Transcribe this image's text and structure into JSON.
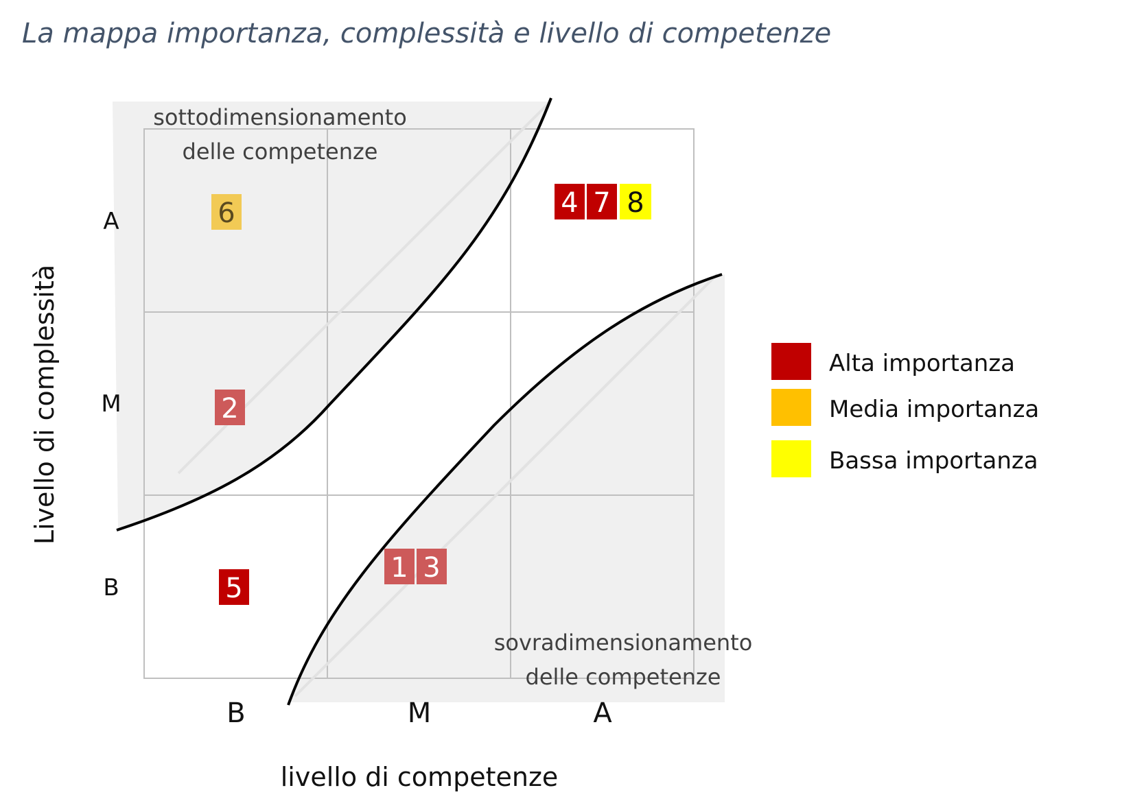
{
  "title": "La mappa importanza, complessità e livello di competenze",
  "y_axis": {
    "label": "Livello di complessità",
    "ticks": [
      "A",
      "M",
      "B"
    ]
  },
  "x_axis": {
    "label": "livello di competenze",
    "ticks": [
      "B",
      "M",
      "A"
    ]
  },
  "zones": {
    "upper": {
      "line1": "sottodimensionamento",
      "line2": "delle competenze"
    },
    "lower": {
      "line1": "sovradimensionamento",
      "line2": "delle competenze"
    }
  },
  "items": [
    {
      "label": "6",
      "level": "media",
      "complexity": "A",
      "competence": "B"
    },
    {
      "label": "4",
      "level": "alta",
      "complexity": "A",
      "competence": "A"
    },
    {
      "label": "7",
      "level": "alta",
      "complexity": "A",
      "competence": "A"
    },
    {
      "label": "8",
      "level": "bassa",
      "complexity": "A",
      "competence": "A"
    },
    {
      "label": "2",
      "level": "alta",
      "complexity": "M",
      "competence": "B"
    },
    {
      "label": "5",
      "level": "alta",
      "complexity": "B",
      "competence": "B"
    },
    {
      "label": "1",
      "level": "alta",
      "complexity": "B",
      "competence": "M"
    },
    {
      "label": "3",
      "level": "alta",
      "complexity": "B",
      "competence": "M"
    }
  ],
  "legend": [
    {
      "key": "alta",
      "label": "Alta importanza",
      "color": "#c00000"
    },
    {
      "key": "media",
      "label": "Media importanza",
      "color": "#ffc000"
    },
    {
      "key": "bassa",
      "label": "Bassa importanza",
      "color": "#ffff00"
    }
  ],
  "colors": {
    "title": "#44546a",
    "zone_fill": "#f0f0f0",
    "grid": "#bfbfbf",
    "curve": "#000000",
    "box_alta": "#cd5a5a",
    "box_alta_strong": "#c00000",
    "box_media": "#f2ca55",
    "box_bassa": "#ffff00"
  }
}
